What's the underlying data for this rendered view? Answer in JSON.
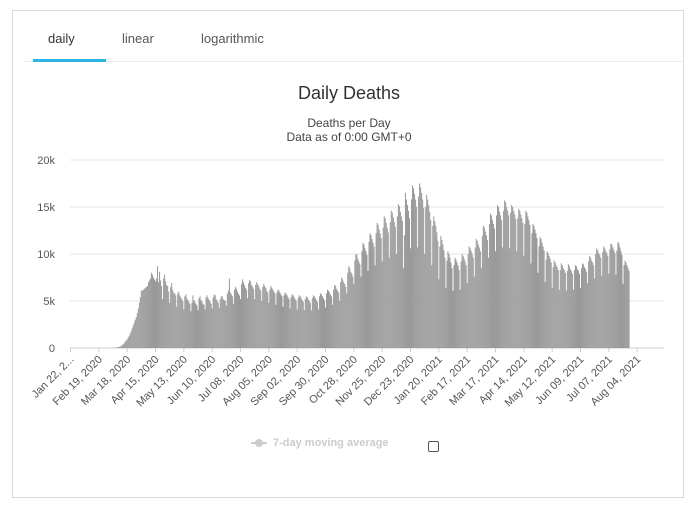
{
  "tabs": [
    {
      "label": "daily",
      "active": true
    },
    {
      "label": "linear",
      "active": false
    },
    {
      "label": "logarithmic",
      "active": false
    }
  ],
  "legend": {
    "label": "7-day moving average",
    "checked": false,
    "color": "#cccccc"
  },
  "colors": {
    "bar": "#999999",
    "accent": "#2db5e6",
    "grid": "#e6e6e6"
  },
  "chart_data": {
    "type": "bar",
    "title": "Daily Deaths",
    "subtitle_lines": [
      "Deaths per Day",
      "Data as of 0:00 GMT+0"
    ],
    "xlabel": "",
    "ylabel": "",
    "ylim": [
      0,
      20000
    ],
    "y_ticks": [
      0,
      5000,
      10000,
      15000,
      20000
    ],
    "y_tick_labels": [
      "0",
      "5k",
      "10k",
      "15k",
      "20k"
    ],
    "x_range": [
      "2020-01-22",
      "2021-08-30"
    ],
    "x_tick_labels": [
      {
        "date": "2020-01-22",
        "label": "Jan 22, 2..."
      },
      {
        "date": "2020-02-19",
        "label": "Feb 19, 2020"
      },
      {
        "date": "2020-03-18",
        "label": "Mar 18, 2020"
      },
      {
        "date": "2020-04-15",
        "label": "Apr 15, 2020"
      },
      {
        "date": "2020-05-13",
        "label": "May 13, 2020"
      },
      {
        "date": "2020-06-10",
        "label": "Jun 10, 2020"
      },
      {
        "date": "2020-07-08",
        "label": "Jul 08, 2020"
      },
      {
        "date": "2020-08-05",
        "label": "Aug 05, 2020"
      },
      {
        "date": "2020-09-02",
        "label": "Sep 02, 2020"
      },
      {
        "date": "2020-09-30",
        "label": "Sep 30, 2020"
      },
      {
        "date": "2020-10-28",
        "label": "Oct 28, 2020"
      },
      {
        "date": "2020-11-25",
        "label": "Nov 25, 2020"
      },
      {
        "date": "2020-12-23",
        "label": "Dec 23, 2020"
      },
      {
        "date": "2021-01-20",
        "label": "Jan 20, 2021"
      },
      {
        "date": "2021-02-17",
        "label": "Feb 17, 2021"
      },
      {
        "date": "2021-03-17",
        "label": "Mar 17, 2021"
      },
      {
        "date": "2021-04-14",
        "label": "Apr 14, 2021"
      },
      {
        "date": "2021-05-12",
        "label": "May 12, 2021"
      },
      {
        "date": "2021-06-09",
        "label": "Jun 09, 2021"
      },
      {
        "date": "2021-07-07",
        "label": "Jul 07, 2021"
      },
      {
        "date": "2021-08-04",
        "label": "Aug 04, 2021"
      }
    ],
    "grid": true,
    "series": [
      {
        "date_start": "2020-01-22",
        "frequency": "1 day",
        "weekly_values": [
          [
            0,
            0,
            0,
            0,
            0,
            0,
            0
          ],
          [
            0,
            0,
            0,
            0,
            0,
            0,
            0
          ],
          [
            0,
            0,
            0,
            0,
            0,
            0,
            0
          ],
          [
            0,
            0,
            0,
            0,
            0,
            0,
            0
          ],
          [
            0,
            0,
            0,
            0,
            0,
            0,
            0
          ],
          [
            0,
            0,
            0,
            0,
            0,
            0,
            0
          ],
          [
            10,
            20,
            30,
            40,
            60,
            80,
            120
          ],
          [
            150,
            200,
            280,
            380,
            500,
            650,
            800
          ],
          [
            900,
            1100,
            1300,
            1550,
            1800,
            2100,
            2400
          ],
          [
            2700,
            3000,
            3300,
            3700,
            4200,
            4800,
            5400
          ],
          [
            6100,
            6100,
            6200,
            6300,
            6400,
            6500,
            6600
          ],
          [
            7000,
            7200,
            7400,
            8000,
            7800,
            7500,
            7300
          ],
          [
            7100,
            7400,
            8700,
            7000,
            8100,
            7200,
            6600
          ],
          [
            5200,
            7400,
            7800,
            7100,
            6700,
            6600,
            6000
          ],
          [
            4800,
            6500,
            6900,
            6200,
            5900,
            5800,
            5600
          ],
          [
            4400,
            5800,
            6000,
            5600,
            5400,
            5200,
            5000
          ],
          [
            4100,
            5500,
            5700,
            5300,
            5100,
            4900,
            4700
          ],
          [
            3900,
            4800,
            5600,
            5100,
            4900,
            4700,
            4500
          ],
          [
            4000,
            5300,
            5500,
            5100,
            4900,
            4700,
            4600
          ],
          [
            4100,
            5400,
            5600,
            5300,
            5100,
            4900,
            4700
          ],
          [
            4200,
            5400,
            5700,
            5600,
            5200,
            5000,
            4800
          ],
          [
            4300,
            5200,
            5500,
            5500,
            5200,
            5100,
            5000
          ],
          [
            4500,
            5800,
            6100,
            7400,
            5900,
            5700,
            5500
          ],
          [
            4700,
            6200,
            6500,
            6300,
            6000,
            5800,
            5600
          ],
          [
            5200,
            6800,
            7300,
            7000,
            6700,
            6400,
            6200
          ],
          [
            5300,
            6900,
            7200,
            7100,
            6700,
            6500,
            6300
          ],
          [
            5200,
            6700,
            7000,
            6800,
            6600,
            6300,
            6100
          ],
          [
            5000,
            6500,
            6800,
            6600,
            6400,
            6100,
            5900
          ],
          [
            4800,
            6200,
            6600,
            6400,
            6200,
            6000,
            5800
          ],
          [
            4600,
            5900,
            6200,
            6100,
            5900,
            5700,
            5500
          ],
          [
            4400,
            5600,
            5900,
            5800,
            5600,
            5400,
            5200
          ],
          [
            4200,
            5400,
            5700,
            5600,
            5400,
            5200,
            5000
          ],
          [
            4100,
            5300,
            5600,
            5500,
            5300,
            5100,
            4900
          ],
          [
            4000,
            5200,
            5500,
            5400,
            5200,
            5000,
            4800
          ],
          [
            4000,
            5300,
            5600,
            5500,
            5300,
            5100,
            4900
          ],
          [
            4100,
            5500,
            5800,
            5700,
            5500,
            5300,
            5100
          ],
          [
            4300,
            5800,
            6200,
            6100,
            5900,
            5700,
            5500
          ],
          [
            4600,
            6200,
            6700,
            6600,
            6300,
            6100,
            5900
          ],
          [
            5000,
            7000,
            7500,
            7300,
            7000,
            6800,
            6500
          ],
          [
            5800,
            8000,
            8700,
            8500,
            8100,
            7900,
            7600
          ],
          [
            6800,
            9300,
            10000,
            9900,
            9500,
            9200,
            8900
          ],
          [
            7600,
            10300,
            11200,
            11000,
            10600,
            10300,
            9900
          ],
          [
            8200,
            11300,
            12200,
            12000,
            11600,
            11200,
            10800
          ],
          [
            8800,
            12200,
            13300,
            13100,
            12600,
            12200,
            11700
          ],
          [
            9200,
            12800,
            14000,
            13800,
            13300,
            12800,
            12300
          ],
          [
            9600,
            13400,
            14600,
            14400,
            13900,
            13400,
            12900
          ],
          [
            10000,
            14000,
            15300,
            15100,
            14500,
            14000,
            13500
          ],
          [
            8500,
            12000,
            16500,
            15800,
            15200,
            14600,
            13800
          ],
          [
            10600,
            15800,
            17300,
            17000,
            16400,
            15800,
            15000
          ],
          [
            10700,
            16100,
            17500,
            17100,
            16500,
            15800,
            14900
          ],
          [
            10000,
            15000,
            16300,
            15800,
            15200,
            14500,
            13600
          ],
          [
            8800,
            13000,
            14000,
            13500,
            13000,
            12300,
            11400
          ],
          [
            7300,
            10800,
            11900,
            11500,
            11000,
            10400,
            9600
          ],
          [
            6400,
            9300,
            10300,
            10000,
            9600,
            9100,
            8500
          ],
          [
            6100,
            8800,
            9600,
            9400,
            9100,
            8800,
            8300
          ],
          [
            6200,
            9200,
            10000,
            9800,
            9500,
            9200,
            8800
          ],
          [
            6900,
            10000,
            10800,
            10600,
            10300,
            10000,
            9600
          ],
          [
            7600,
            10700,
            11600,
            11400,
            11000,
            10700,
            10300
          ],
          [
            8500,
            11900,
            13000,
            12800,
            12400,
            12000,
            11500
          ],
          [
            9600,
            13200,
            14300,
            14100,
            13600,
            13200,
            12700
          ],
          [
            10300,
            14100,
            15200,
            15000,
            14500,
            14100,
            13600
          ],
          [
            10700,
            14600,
            15700,
            15500,
            15000,
            14600,
            14100
          ],
          [
            10600,
            14400,
            15200,
            15000,
            14600,
            14200,
            13700
          ],
          [
            10300,
            13800,
            14800,
            14600,
            14200,
            13800,
            13300
          ],
          [
            9800,
            13200,
            14600,
            14400,
            14000,
            13600,
            13100
          ],
          [
            9000,
            12200,
            13200,
            13000,
            12600,
            12200,
            11700
          ],
          [
            8000,
            10800,
            11800,
            11600,
            11200,
            10800,
            10400
          ],
          [
            7000,
            9400,
            10300,
            10100,
            9800,
            9500,
            9100
          ],
          [
            6400,
            8600,
            9300,
            9100,
            8800,
            8600,
            8300
          ],
          [
            6200,
            8300,
            9000,
            8800,
            8500,
            8300,
            8000
          ],
          [
            6100,
            8200,
            8900,
            8700,
            8400,
            8200,
            7900
          ],
          [
            6200,
            8300,
            8800,
            8700,
            8400,
            8200,
            7900
          ],
          [
            6400,
            8500,
            9000,
            8900,
            8600,
            8400,
            8100
          ],
          [
            6900,
            9200,
            9800,
            9600,
            9300,
            9100,
            8800
          ],
          [
            7400,
            10000,
            10600,
            10400,
            10100,
            9900,
            9600
          ],
          [
            7700,
            10200,
            10800,
            10600,
            10300,
            10100,
            9800
          ],
          [
            7900,
            10500,
            11100,
            11000,
            10700,
            10400,
            10100
          ],
          [
            7800,
            10400,
            11300,
            11100,
            10700,
            10300,
            9900
          ],
          [
            6800,
            8800,
            9300,
            9100,
            8800,
            8500,
            8200
          ]
        ]
      }
    ]
  }
}
